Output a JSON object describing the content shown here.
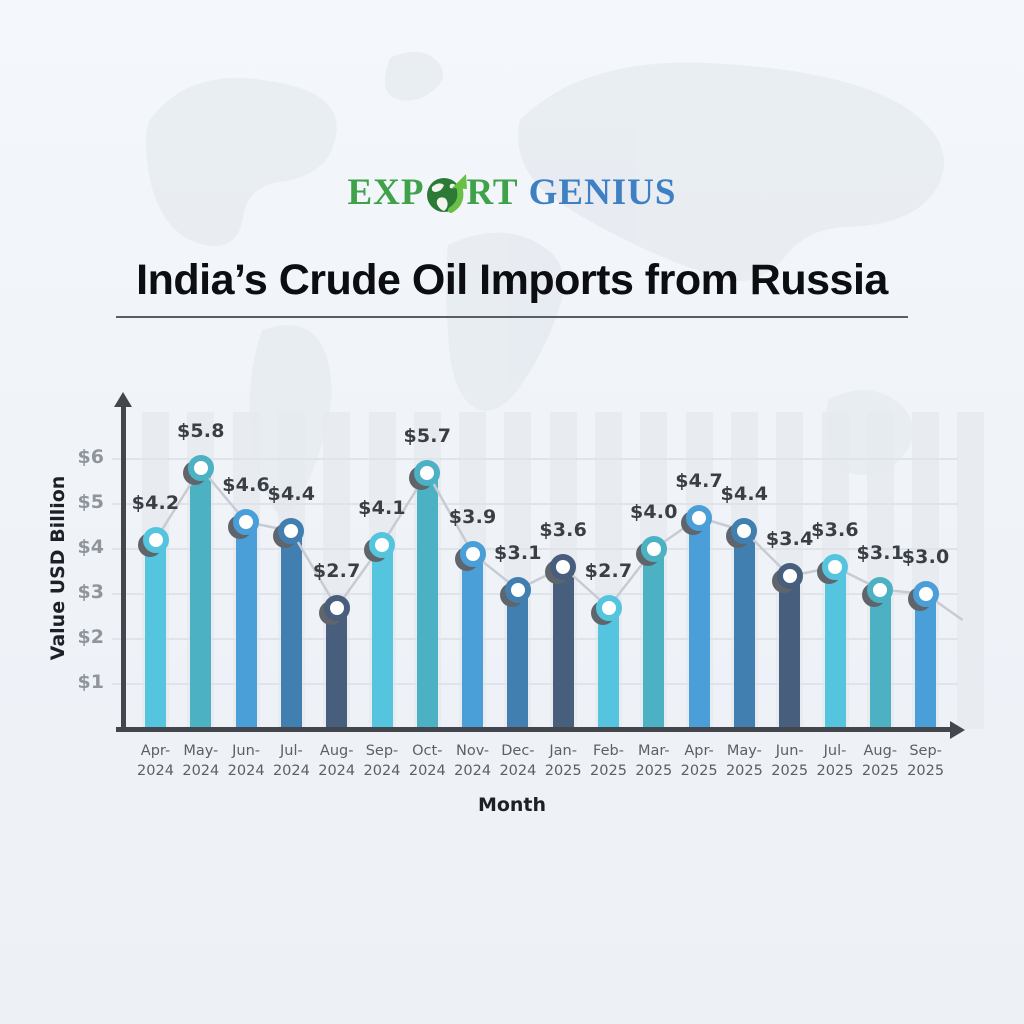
{
  "logo": {
    "word1_prefix": "EXP",
    "word1_suffix": "RT",
    "word2": "GENIUS",
    "green": "#3fa24a",
    "blue": "#3d80c4"
  },
  "title": {
    "text": "India’s Crude Oil Imports from Russia"
  },
  "chart_data": {
    "type": "bar",
    "overlay": "line-with-markers",
    "title": "India’s Crude Oil Imports from Russia",
    "xlabel": "Month",
    "ylabel": "Value USD Billion",
    "categories": [
      "Apr-2024",
      "May-2024",
      "Jun-2024",
      "Jul-2024",
      "Aug-2024",
      "Sep-2024",
      "Oct-2024",
      "Nov-2024",
      "Dec-2024",
      "Jan-2025",
      "Feb-2025",
      "Mar-2025",
      "Apr-2025",
      "May-2025",
      "Jun-2025",
      "Jul-2025",
      "Aug-2025",
      "Sep-2025"
    ],
    "values": [
      4.2,
      5.8,
      4.6,
      4.4,
      2.7,
      4.1,
      5.7,
      3.9,
      3.1,
      3.6,
      2.7,
      4.0,
      4.7,
      4.4,
      3.4,
      3.6,
      3.1,
      3.0
    ],
    "value_labels": [
      "$4.2",
      "$5.8",
      "$4.6",
      "$4.4",
      "$2.7",
      "$4.1",
      "$5.7",
      "$3.9",
      "$3.1",
      "$3.6",
      "$2.7",
      "$4.0",
      "$4.7",
      "$4.4",
      "$3.4",
      "$3.6",
      "$3.1",
      "$3.0"
    ],
    "ytick_labels": [
      "$1",
      "$2",
      "$3",
      "$4",
      "$5",
      "$6"
    ],
    "ylim": [
      0,
      6.9
    ],
    "grid": true,
    "legend": false,
    "colors": {
      "bar_cycle": [
        "#55c5df",
        "#4cb2c3",
        "#4a9fd9",
        "#417fb0",
        "#475e7c"
      ],
      "line": "#c8ccd2",
      "marker_fill": "#ffffff",
      "marker_shadow": "#60656c",
      "axis": "#43474d",
      "grid": "#dfe4ea",
      "column_stripe": "#e5e9ee",
      "ytick_text": "#8f959d",
      "xtick_text": "#595f67",
      "value_label_text": "#3a3f46",
      "axis_title_text": "#1c2127"
    }
  }
}
